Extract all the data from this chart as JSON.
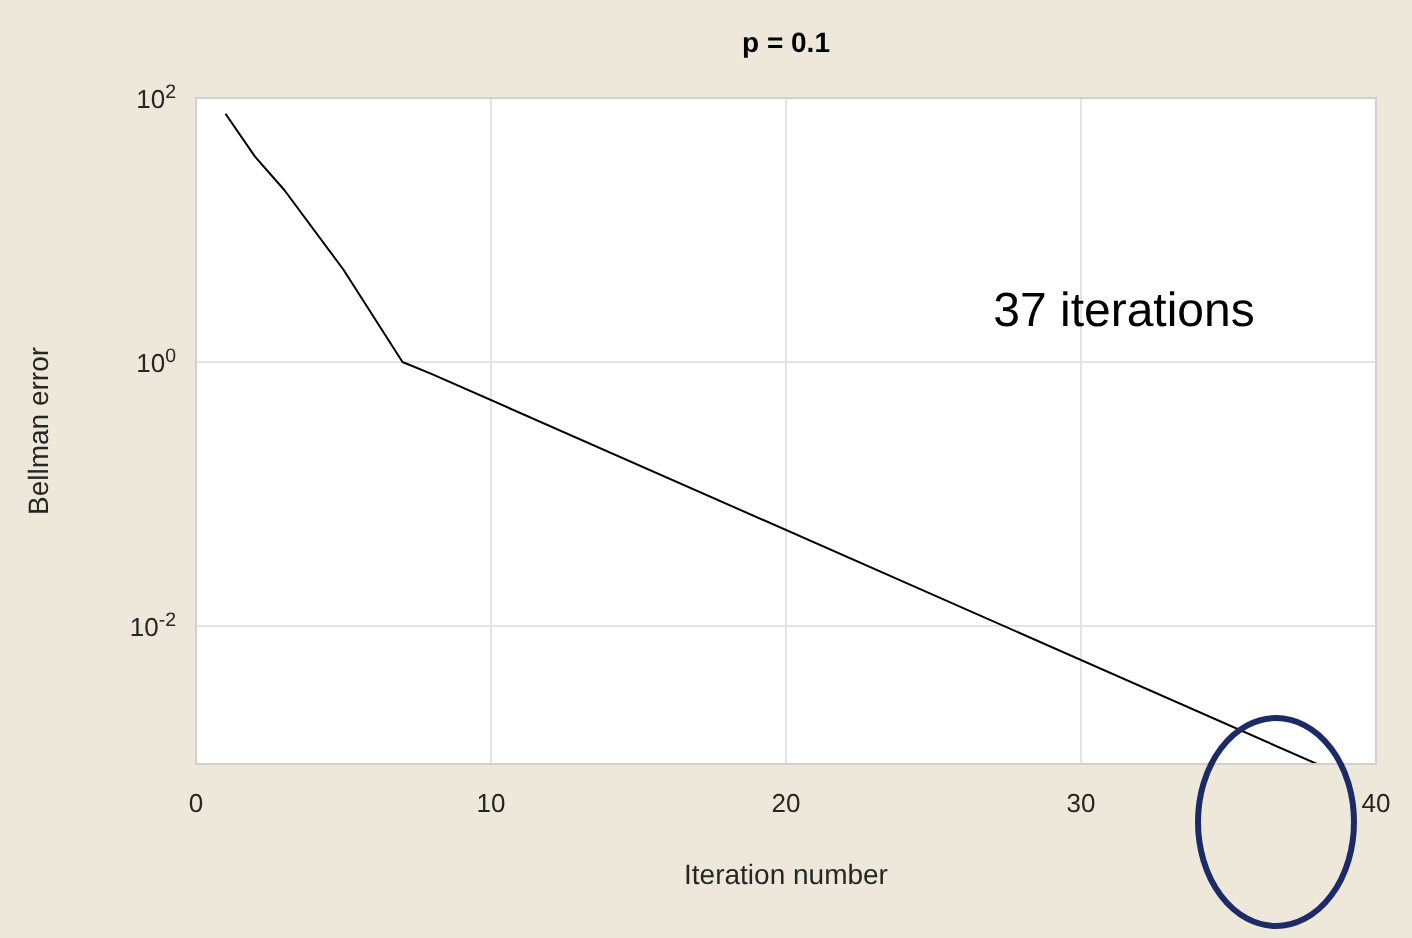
{
  "chart_data": {
    "type": "line",
    "title": "p = 0.1",
    "xlabel": "Iteration number",
    "ylabel": "Bellman error",
    "x": [
      1,
      2,
      3,
      5,
      7,
      8,
      38
    ],
    "series": [
      {
        "color": "#000000",
        "values": [
          76,
          36,
          20,
          5,
          1,
          0.81,
          0.0009
        ]
      }
    ],
    "xlim": [
      0,
      40
    ],
    "xticks": [
      0,
      10,
      20,
      30,
      40
    ],
    "ylim": [
      0.0009,
      100
    ],
    "yticks": [
      {
        "value": 100,
        "label": "10$^{2}$"
      },
      {
        "value": 1,
        "label": "10$^{0}$"
      },
      {
        "value": 0.01,
        "label": "10$^{-2}$"
      }
    ],
    "log": "y",
    "grid": true,
    "marker": "none",
    "line_style": "solid",
    "annotations": [
      "37 iterations"
    ]
  }
}
